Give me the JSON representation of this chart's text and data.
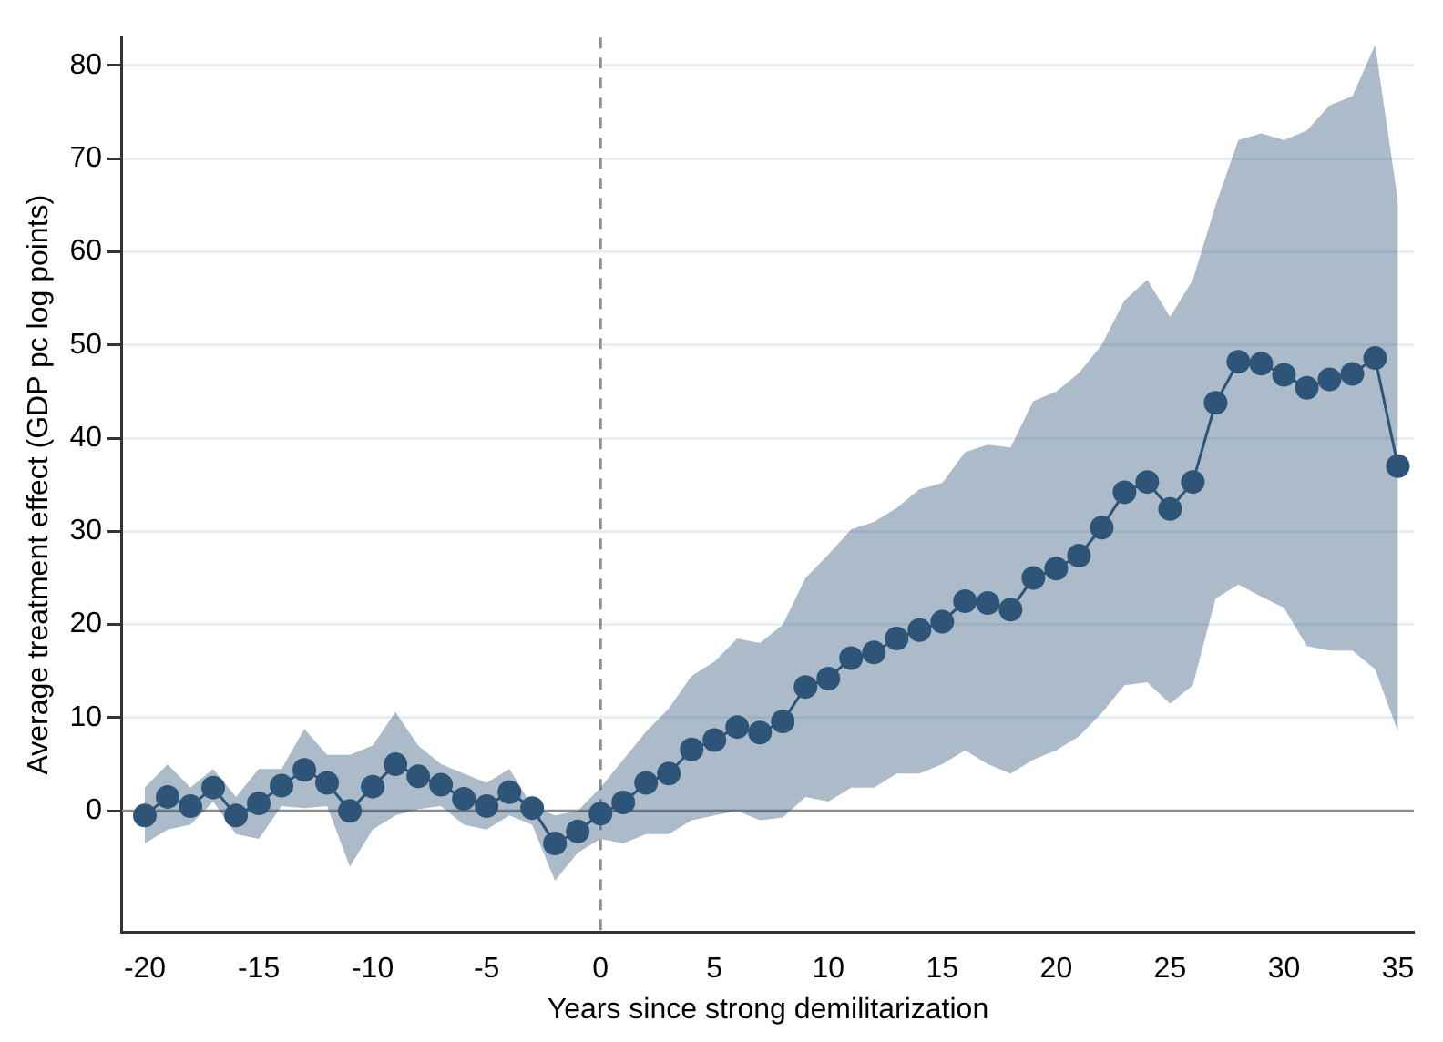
{
  "chart_data": {
    "type": "line",
    "xlabel": "Years since strong demilitarization",
    "ylabel": "Average treatment effect (GDP pc log points)",
    "x": [
      -20,
      -19,
      -18,
      -17,
      -16,
      -15,
      -14,
      -13,
      -12,
      -11,
      -10,
      -9,
      -8,
      -7,
      -6,
      -5,
      -4,
      -3,
      -2,
      -1,
      0,
      1,
      2,
      3,
      4,
      5,
      6,
      7,
      8,
      9,
      10,
      11,
      12,
      13,
      14,
      15,
      16,
      17,
      18,
      19,
      20,
      21,
      22,
      23,
      24,
      25,
      26,
      27,
      28,
      29,
      30,
      31,
      32,
      33,
      34,
      35
    ],
    "series": [
      {
        "color": "#2e5577",
        "values": [
          -0.5,
          1.5,
          0.5,
          2.5,
          -0.5,
          0.8,
          2.7,
          4.4,
          3,
          0,
          2.6,
          5,
          3.7,
          2.8,
          1.3,
          0.5,
          2,
          0.3,
          -3.5,
          -2.2,
          -0.3,
          0.9,
          3,
          4,
          6.6,
          7.6,
          9,
          8.4,
          9.6,
          13.3,
          14.2,
          16.4,
          17,
          18.5,
          19.4,
          20.3,
          22.5,
          22.3,
          21.6,
          25,
          26,
          27.4,
          30.4,
          34.2,
          35.3,
          32.4,
          35.3,
          43.8,
          48.2,
          48,
          46.8,
          45.4,
          46.3,
          46.9,
          48.6,
          37
        ],
        "lower": [
          -3.5,
          -2,
          -1.5,
          1,
          -2.5,
          -3,
          0.5,
          0.3,
          0.5,
          -6,
          -2,
          -0.5,
          0.2,
          0.5,
          -1.5,
          -2,
          -0.5,
          -1.5,
          -7.5,
          -4.5,
          -3,
          -3.5,
          -2.5,
          -2.5,
          -1,
          -0.5,
          0,
          -1,
          -0.7,
          1.5,
          1,
          2.5,
          2.5,
          4,
          4,
          5,
          6.5,
          5,
          4,
          5.5,
          6.5,
          8,
          10.5,
          13.5,
          13.8,
          11.5,
          13.5,
          22.8,
          24.3,
          23,
          21.8,
          17.7,
          17.2,
          17.2,
          15.2,
          8.5
        ],
        "upper": [
          2.5,
          5,
          2.5,
          4.5,
          1.5,
          4.5,
          4.5,
          8.8,
          6,
          6,
          7,
          10.6,
          7,
          5,
          4,
          3,
          4.5,
          0.5,
          -0.5,
          0,
          2.5,
          5.5,
          8.5,
          11,
          14.5,
          16,
          18.5,
          18,
          20,
          25,
          27.5,
          30.2,
          31,
          32.5,
          34.5,
          35.2,
          38.5,
          39.3,
          39,
          44,
          45,
          47,
          50,
          54.8,
          57,
          53,
          57,
          65,
          72,
          72.7,
          72,
          73,
          75.7,
          76.7,
          82.2,
          65.5
        ]
      }
    ],
    "xlim": [
      -21,
      35.7
    ],
    "xticks": [
      -20,
      -15,
      -10,
      -5,
      0,
      5,
      10,
      15,
      20,
      25,
      30,
      35
    ],
    "ylim": [
      -13,
      83
    ],
    "yticks": [
      0,
      10,
      20,
      30,
      40,
      50,
      60,
      70,
      80
    ],
    "grid": "y",
    "marker": "circle",
    "line_style": "solid",
    "ref_lines": [
      {
        "axis": "y",
        "value": 0,
        "color": "#8c8c8c",
        "line_style": "solid"
      },
      {
        "axis": "x",
        "value": 0,
        "color": "#8c8c8c",
        "line_style": "dashed"
      }
    ]
  }
}
